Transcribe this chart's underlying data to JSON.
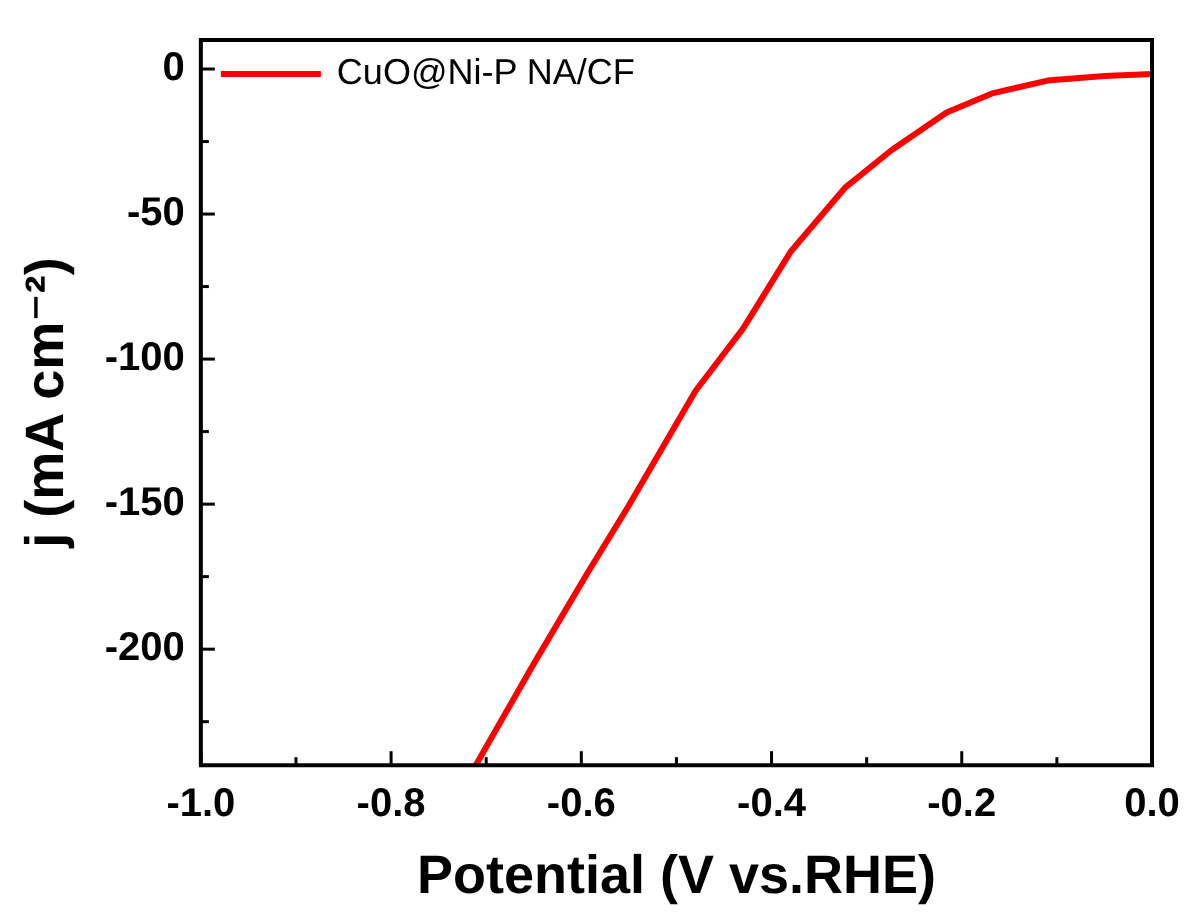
{
  "chart_data": {
    "type": "line",
    "xlabel": "Potential (V vs.RHE)",
    "ylabel": "j (mA cm⁻²)",
    "series": [
      {
        "name": "CuO@Ni-P NA/CF",
        "color": "#ff0000",
        "x": [
          -0.711,
          -0.65,
          -0.594,
          -0.551,
          -0.48,
          -0.43,
          -0.38,
          -0.323,
          -0.274,
          -0.216,
          -0.167,
          -0.11,
          -0.05,
          0.0
        ],
        "values": [
          -240,
          -205,
          -174,
          -151,
          -111,
          -89.5,
          -63,
          -41,
          -28,
          -15,
          -8.3,
          -4,
          -2.4,
          -1.7
        ]
      }
    ],
    "xlim": [
      -1.0,
      0.0
    ],
    "ylim": [
      -240,
      10
    ],
    "xticks": [
      {
        "value": -1.0,
        "label": "-1.0"
      },
      {
        "value": -0.9,
        "label": null
      },
      {
        "value": -0.8,
        "label": "-0.8"
      },
      {
        "value": -0.7,
        "label": null
      },
      {
        "value": -0.6,
        "label": "-0.6"
      },
      {
        "value": -0.5,
        "label": null
      },
      {
        "value": -0.4,
        "label": "-0.4"
      },
      {
        "value": -0.3,
        "label": null
      },
      {
        "value": -0.2,
        "label": "-0.2"
      },
      {
        "value": -0.1,
        "label": null
      },
      {
        "value": 0.0,
        "label": "0.0"
      }
    ],
    "yticks": [
      {
        "value": -225,
        "label": null
      },
      -200,
      {
        "value": -175,
        "label": null
      },
      -150,
      {
        "value": -125,
        "label": null
      },
      -100,
      {
        "value": -75,
        "label": null
      },
      -50,
      {
        "value": -25,
        "label": null
      },
      0
    ],
    "grid": false,
    "legend": "top left",
    "marker": "none",
    "line_style": "solid"
  }
}
